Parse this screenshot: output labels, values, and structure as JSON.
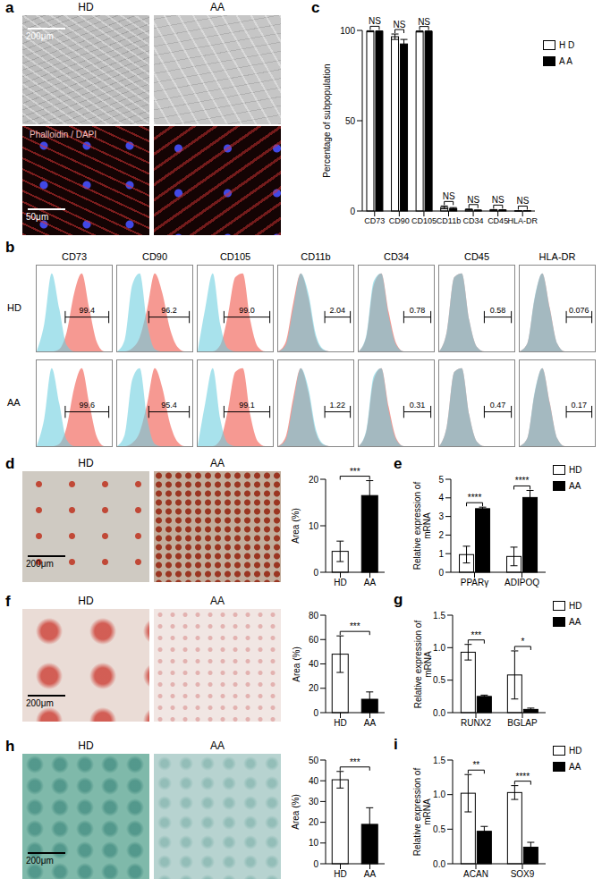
{
  "image_panels": [
    {
      "panel": "a",
      "columns": [
        "HD",
        "AA"
      ],
      "scale_bars": [
        "200μm",
        "50μm"
      ],
      "stain_label": "Phalloidin / DAPI"
    },
    {
      "panel": "d",
      "columns": [
        "HD",
        "AA"
      ],
      "scale_bars": [
        "200μm"
      ]
    },
    {
      "panel": "f",
      "columns": [
        "HD",
        "AA"
      ],
      "scale_bars": [
        "200μm"
      ]
    },
    {
      "panel": "h",
      "columns": [
        "HD",
        "AA"
      ],
      "scale_bars": [
        "200μm"
      ]
    }
  ],
  "chart_data": [
    {
      "panel": "b",
      "type": "area",
      "tick_labels": false,
      "columns": [
        "CD73",
        "CD90",
        "CD105",
        "CD11b",
        "CD34",
        "CD45",
        "HLA-DR"
      ],
      "x": [
        0,
        10,
        20,
        30,
        40,
        50,
        60,
        70,
        80,
        90,
        100
      ],
      "xlim": [
        0,
        100
      ],
      "ylim": [
        0,
        110
      ],
      "curves": [
        {
          "series": [
            {
              "color": "#f4877f",
              "values": [
                0,
                0,
                0,
                3,
                25,
                75,
                100,
                55,
                12,
                0,
                0
              ]
            },
            {
              "color": "#6ecfdf",
              "values": [
                0,
                35,
                100,
                55,
                8,
                0,
                0,
                0,
                0,
                0,
                0
              ]
            }
          ],
          "gate": [
            38,
            96
          ]
        },
        {
          "series": [
            {
              "color": "#f4877f",
              "values": [
                0,
                0,
                4,
                18,
                55,
                100,
                75,
                30,
                6,
                0,
                0
              ]
            },
            {
              "color": "#6ecfdf",
              "values": [
                0,
                15,
                85,
                100,
                35,
                3,
                0,
                0,
                0,
                0,
                0
              ]
            }
          ],
          "gate": [
            42,
            96
          ]
        },
        {
          "series": [
            {
              "color": "#f4877f",
              "values": [
                0,
                0,
                0,
                8,
                45,
                95,
                100,
                40,
                6,
                0,
                0
              ]
            },
            {
              "color": "#6ecfdf",
              "values": [
                0,
                55,
                100,
                35,
                4,
                0,
                0,
                0,
                0,
                0,
                0
              ]
            }
          ],
          "gate": [
            35,
            96
          ]
        },
        {
          "series": [
            {
              "color": "#f4877f",
              "values": [
                0,
                12,
                62,
                100,
                70,
                18,
                2,
                0,
                0,
                0,
                0
              ]
            },
            {
              "color": "#6ecfdf",
              "values": [
                0,
                8,
                55,
                100,
                75,
                22,
                3,
                0,
                0,
                0,
                0
              ]
            }
          ],
          "gate": [
            62,
            96
          ]
        },
        {
          "series": [
            {
              "color": "#f4877f",
              "values": [
                0,
                18,
                85,
                100,
                50,
                10,
                0,
                0,
                0,
                0,
                0
              ]
            },
            {
              "color": "#6ecfdf",
              "values": [
                0,
                20,
                90,
                100,
                45,
                8,
                0,
                0,
                0,
                0,
                0
              ]
            }
          ],
          "gate": [
            60,
            96
          ]
        },
        {
          "series": [
            {
              "color": "#f4877f",
              "values": [
                0,
                25,
                95,
                100,
                40,
                6,
                0,
                0,
                0,
                0,
                0
              ]
            },
            {
              "color": "#6ecfdf",
              "values": [
                0,
                25,
                95,
                100,
                40,
                6,
                0,
                0,
                0,
                0,
                0
              ]
            }
          ],
          "gate": [
            60,
            96
          ]
        },
        {
          "series": [
            {
              "color": "#f4877f",
              "values": [
                0,
                10,
                68,
                100,
                56,
                10,
                0,
                0,
                0,
                0,
                0
              ]
            },
            {
              "color": "#6ecfdf",
              "values": [
                0,
                10,
                70,
                100,
                55,
                10,
                0,
                0,
                0,
                0,
                0
              ]
            }
          ],
          "gate": [
            62,
            96
          ]
        }
      ],
      "rows": [
        {
          "name": "HD",
          "values": [
            99.4,
            96.2,
            99.0,
            2.04,
            0.78,
            0.58,
            0.076
          ],
          "value_labels": [
            "99.4",
            "96.2",
            "99.0",
            "2.04",
            "0.78",
            "0.58",
            "0.076"
          ]
        },
        {
          "name": "AA",
          "values": [
            99.6,
            95.4,
            99.1,
            1.22,
            0.31,
            0.47,
            0.17
          ],
          "value_labels": [
            "99.6",
            "95.4",
            "99.1",
            "1.22",
            "0.31",
            "0.47",
            "0.17"
          ]
        }
      ]
    },
    {
      "panel": "c",
      "type": "bar",
      "categories": [
        "CD73",
        "CD90",
        "CD105",
        "CD11b",
        "CD34",
        "CD45",
        "HLA-DR"
      ],
      "ylabel": "Percentage of subpopulation",
      "ylim": [
        0,
        100
      ],
      "yticks": [
        0,
        50,
        100
      ],
      "legend": "right",
      "series": [
        {
          "name": "H D",
          "color": "#ffffff",
          "values": [
            99.5,
            96.5,
            99.4,
            2.0,
            0.8,
            0.6,
            0.1
          ],
          "errors": [
            0.3,
            1.5,
            0.3,
            0.8,
            0.3,
            0.2,
            0.05
          ]
        },
        {
          "name": "A A",
          "color": "#000000",
          "values": [
            99.5,
            92.5,
            99.4,
            1.4,
            0.4,
            0.5,
            0.2
          ],
          "errors": [
            0.2,
            2.5,
            0.3,
            0.5,
            0.2,
            0.2,
            0.05
          ]
        }
      ],
      "annotations": [
        "NS",
        "NS",
        "NS",
        "NS",
        "NS",
        "NS",
        "NS"
      ]
    },
    {
      "panel": "d",
      "type": "bar",
      "categories": [
        "HD",
        "AA"
      ],
      "values": [
        4.5,
        16.5
      ],
      "errors": [
        2.2,
        3.2
      ],
      "colors": [
        "#ffffff",
        "#000000"
      ],
      "ylabel": "Area (%)",
      "ylim": [
        0,
        20
      ],
      "yticks": [
        0,
        10,
        20
      ],
      "annotation": "***"
    },
    {
      "panel": "e",
      "type": "bar",
      "categories": [
        "PPARγ",
        "ADIPOQ"
      ],
      "ylabel": "Relative expression of mRNA",
      "ylim": [
        0,
        5
      ],
      "yticks": [
        0,
        1,
        2,
        3,
        4,
        5
      ],
      "legend": "top-right",
      "series": [
        {
          "name": "HD",
          "color": "#ffffff",
          "values": [
            0.95,
            0.85
          ],
          "errors": [
            0.45,
            0.5
          ]
        },
        {
          "name": "AA",
          "color": "#000000",
          "values": [
            3.42,
            4.02
          ],
          "errors": [
            0.08,
            0.38
          ]
        }
      ],
      "annotations": [
        "****",
        "****"
      ]
    },
    {
      "panel": "f",
      "type": "bar",
      "categories": [
        "HD",
        "AA"
      ],
      "values": [
        48,
        11
      ],
      "errors": [
        15,
        6
      ],
      "colors": [
        "#ffffff",
        "#000000"
      ],
      "ylabel": "Area (%)",
      "ylim": [
        0,
        80
      ],
      "yticks": [
        0,
        20,
        40,
        60,
        80
      ],
      "annotation": "***"
    },
    {
      "panel": "g",
      "type": "bar",
      "categories": [
        "RUNX2",
        "BGLAP"
      ],
      "ylabel": "Relative expression of mRNA",
      "ylim": [
        0,
        1.5
      ],
      "yticks": [
        {
          "value": 0,
          "label": "0.0"
        },
        {
          "value": 0.5,
          "label": "0.5"
        },
        {
          "value": 1,
          "label": "1.0"
        },
        {
          "value": 1.5,
          "label": "1.5"
        }
      ],
      "legend": "top-right",
      "series": [
        {
          "name": "HD",
          "color": "#ffffff",
          "values": [
            0.93,
            0.58
          ],
          "errors": [
            0.12,
            0.37
          ]
        },
        {
          "name": "AA",
          "color": "#000000",
          "values": [
            0.25,
            0.05
          ],
          "errors": [
            0.02,
            0.02
          ]
        }
      ],
      "annotations": [
        "***",
        "*"
      ]
    },
    {
      "panel": "h",
      "type": "bar",
      "categories": [
        "HD",
        "AA"
      ],
      "values": [
        40.5,
        19
      ],
      "errors": [
        4,
        8
      ],
      "colors": [
        "#ffffff",
        "#000000"
      ],
      "ylabel": "Area (%)",
      "ylim": [
        0,
        50
      ],
      "yticks": [
        0,
        10,
        20,
        30,
        40,
        50
      ],
      "annotation": "***"
    },
    {
      "panel": "i",
      "type": "bar",
      "categories": [
        "ACAN",
        "SOX9"
      ],
      "ylabel": "Relative expression of mRNA",
      "ylim": [
        0,
        1.5
      ],
      "yticks": [
        {
          "value": 0,
          "label": "0.0"
        },
        {
          "value": 0.5,
          "label": "0.5"
        },
        {
          "value": 1,
          "label": "1.0"
        },
        {
          "value": 1.5,
          "label": "1.5"
        }
      ],
      "legend": "top-right",
      "series": [
        {
          "name": "HD",
          "color": "#ffffff",
          "values": [
            1.02,
            1.03
          ],
          "errors": [
            0.27,
            0.1
          ]
        },
        {
          "name": "AA",
          "color": "#000000",
          "values": [
            0.47,
            0.24
          ],
          "errors": [
            0.07,
            0.07
          ]
        }
      ],
      "annotations": [
        "**",
        "****"
      ]
    }
  ]
}
